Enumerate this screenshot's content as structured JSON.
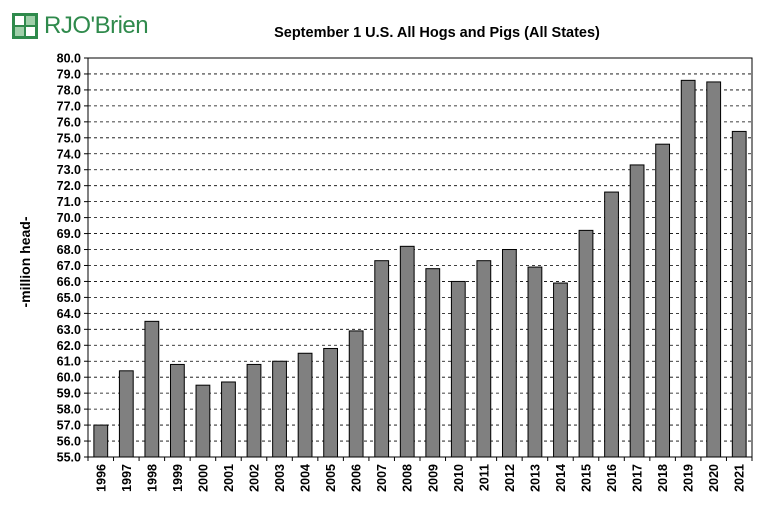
{
  "brand": {
    "name": "RJO'Brien",
    "accent": "#2f8a4c"
  },
  "chart_data": {
    "type": "bar",
    "title": "September 1 U.S. All Hogs and Pigs (All States)",
    "xlabel": "",
    "ylabel": "-million head-",
    "ylim": [
      55.0,
      80.0
    ],
    "ytick_step": 1.0,
    "grid": true,
    "bar_color": "#808080",
    "categories": [
      "1996",
      "1997",
      "1998",
      "1999",
      "2000",
      "2001",
      "2002",
      "2003",
      "2004",
      "2005",
      "2006",
      "2007",
      "2008",
      "2009",
      "2010",
      "2011",
      "2012",
      "2013",
      "2014",
      "2015",
      "2016",
      "2017",
      "2018",
      "2019",
      "2020",
      "2021"
    ],
    "values": [
      57.0,
      60.4,
      63.5,
      60.8,
      59.5,
      59.7,
      60.8,
      61.0,
      61.5,
      61.8,
      62.9,
      67.3,
      68.2,
      66.8,
      66.0,
      67.3,
      68.0,
      66.9,
      65.9,
      69.2,
      71.6,
      73.3,
      74.6,
      78.6,
      78.5,
      75.4
    ]
  }
}
